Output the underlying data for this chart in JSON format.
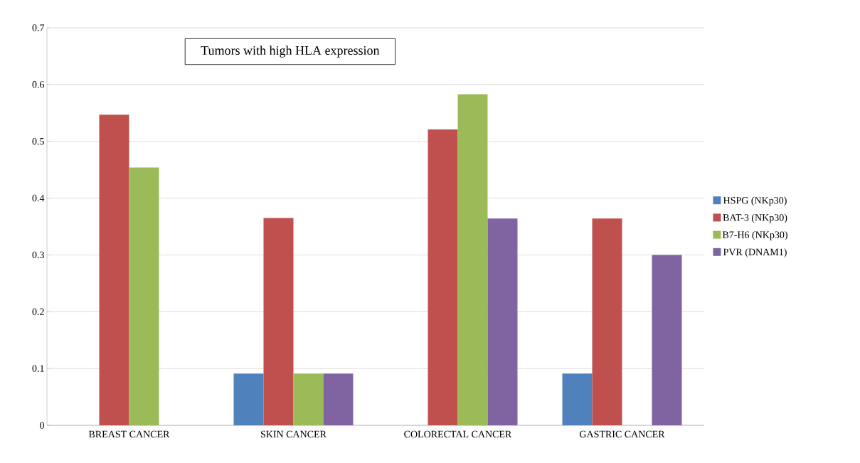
{
  "chart_data": {
    "type": "bar",
    "title": "Tumors with high HLA expression",
    "categories": [
      "BREAST CANCER",
      "SKIN CANCER",
      "COLORECTAL CANCER",
      "GASTRIC CANCER"
    ],
    "series": [
      {
        "name": "HSPG (NKp30)",
        "color": "#4f81bd",
        "values": [
          0,
          0.091,
          0,
          0.091
        ]
      },
      {
        "name": "BAT-3  (NKp30)",
        "color": "#c0504d",
        "values": [
          0.547,
          0.365,
          0.521,
          0.364
        ]
      },
      {
        "name": "B7-H6 (NKp30)",
        "color": "#9bbb59",
        "values": [
          0.454,
          0.091,
          0.583,
          0
        ]
      },
      {
        "name": "PVR (DNAM1)",
        "color": "#8064a2",
        "values": [
          0,
          0.091,
          0.364,
          0.3
        ]
      }
    ],
    "ylim": [
      0,
      0.7
    ],
    "yticks": [
      0,
      0.1,
      0.2,
      0.3,
      0.4,
      0.5,
      0.6,
      0.7
    ],
    "grid": "y",
    "legend": "right"
  }
}
